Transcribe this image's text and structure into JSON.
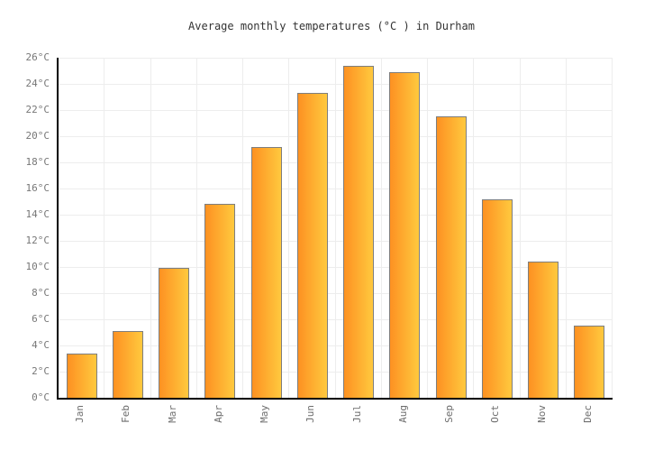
{
  "chart_data": {
    "type": "bar",
    "title": "Average monthly temperatures (°C ) in Durham",
    "categories": [
      "Jan",
      "Feb",
      "Mar",
      "Apr",
      "May",
      "Jun",
      "Jul",
      "Aug",
      "Sep",
      "Oct",
      "Nov",
      "Dec"
    ],
    "values": [
      3.4,
      5.1,
      9.9,
      14.8,
      19.2,
      23.3,
      25.4,
      24.9,
      21.5,
      15.2,
      10.4,
      5.5
    ],
    "unit": "°C",
    "xlabel": "",
    "ylabel": "",
    "ylim": [
      0,
      26
    ],
    "ytick_step": 2,
    "ytick_labels": [
      "0°C",
      "2°C",
      "4°C",
      "6°C",
      "8°C",
      "10°C",
      "12°C",
      "14°C",
      "16°C",
      "18°C",
      "20°C",
      "22°C",
      "24°C",
      "26°C"
    ],
    "grid": true,
    "legend": false,
    "bar_orientation": "vertical"
  },
  "colors": {
    "background": "#ffffff",
    "bar_gradient_left": "#fd9122",
    "bar_gradient_right": "#ffc93e",
    "bar_border": "#7e7e7e",
    "gridline": "#ededed",
    "axis": "#000000",
    "title_text": "#333333",
    "ytick_text": "#777777",
    "xtick_text": "#6e6e6e"
  }
}
